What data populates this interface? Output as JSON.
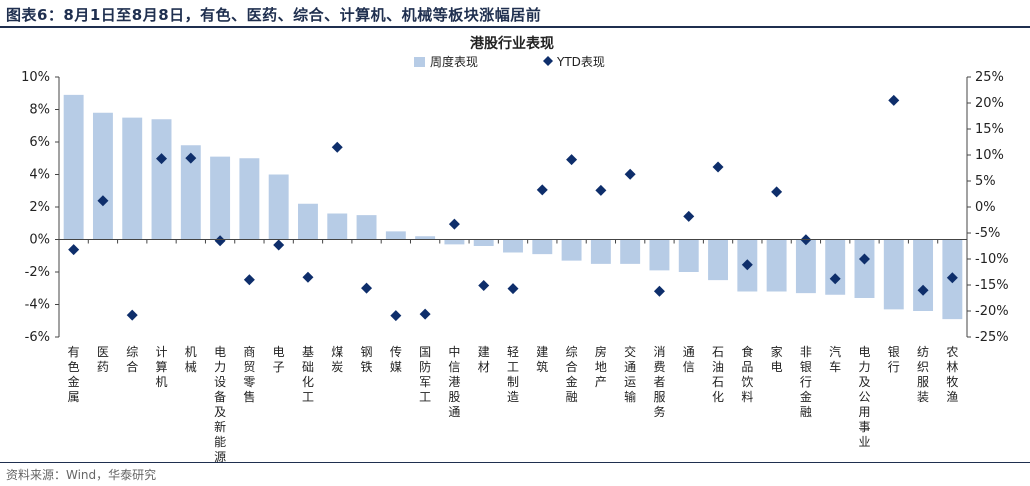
{
  "figure": {
    "caption": "图表6：8月1日至8月8日，有色、医药、综合、计算机、机械等板块涨幅居前",
    "source": "资料来源：Wind，华泰研究"
  },
  "colors": {
    "bar": "#b7cce6",
    "marker": "#0e2e6b",
    "axis": "#444444",
    "title": "#1f2f4f"
  },
  "chart_data": {
    "type": "bar",
    "title": "港股行业表现",
    "legend": {
      "position": "top-center",
      "items": [
        "周度表现",
        "YTD表现"
      ]
    },
    "y_left": {
      "min": -6,
      "max": 10,
      "step": 2,
      "unit": "%",
      "ticks": [
        "10%",
        "8%",
        "6%",
        "4%",
        "2%",
        "0%",
        "-2%",
        "-4%",
        "-6%"
      ]
    },
    "y_right": {
      "min": -25,
      "max": 25,
      "step": 5,
      "unit": "%",
      "ticks": [
        "25%",
        "20%",
        "15%",
        "10%",
        "5%",
        "0%",
        "-5%",
        "-10%",
        "-15%",
        "-20%",
        "-25%"
      ]
    },
    "grid": false,
    "categories": [
      "有色金属",
      "医药",
      "综合",
      "计算机",
      "机械",
      "电力设备及新能源",
      "商贸零售",
      "电子",
      "基础化工",
      "煤炭",
      "钢铁",
      "传媒",
      "国防军工",
      "中信港股通",
      "建材",
      "轻工制造",
      "建筑",
      "综合金融",
      "房地产",
      "交通运输",
      "消费者服务",
      "通信",
      "石油石化",
      "食品饮料",
      "家电",
      "非银行金融",
      "汽车",
      "电力及公用事业",
      "银行",
      "纺织服装",
      "农林牧渔"
    ],
    "series": [
      {
        "name": "周度表现",
        "type": "bar",
        "axis": "left",
        "values": [
          8.9,
          7.8,
          7.5,
          7.4,
          5.8,
          5.1,
          5.0,
          4.0,
          2.2,
          1.6,
          1.5,
          0.5,
          0.2,
          -0.3,
          -0.4,
          -0.8,
          -0.9,
          -1.3,
          -1.5,
          -1.5,
          -1.9,
          -2.0,
          -2.5,
          -3.2,
          -3.2,
          -3.3,
          -3.4,
          -3.6,
          -4.3,
          -4.4,
          -4.9
        ]
      },
      {
        "name": "YTD表现",
        "type": "scatter",
        "axis": "right",
        "values": [
          -8.2,
          1.2,
          -20.8,
          9.3,
          9.4,
          -6.5,
          -14.0,
          -7.3,
          -13.5,
          11.5,
          -15.6,
          -20.9,
          -20.6,
          -3.3,
          -15.1,
          -15.7,
          3.3,
          9.1,
          3.2,
          6.3,
          -16.2,
          -1.8,
          7.7,
          -11.1,
          2.9,
          -6.3,
          -13.8,
          -10.0,
          20.5,
          -16.0,
          -13.6
        ]
      }
    ]
  }
}
